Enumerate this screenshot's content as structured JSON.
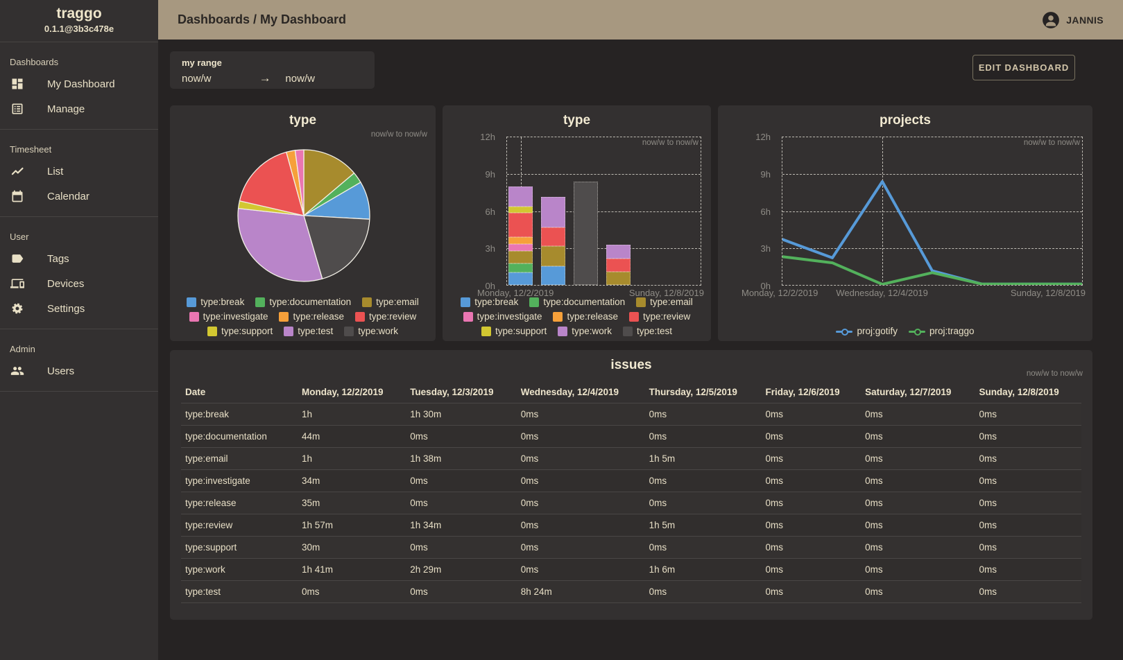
{
  "app": {
    "name": "traggo",
    "version": "0.1.1@3b3c478e"
  },
  "topbar": {
    "breadcrumb": "Dashboards / My Dashboard",
    "username": "JANNIS"
  },
  "sidebar": {
    "sections": [
      {
        "label": "Dashboards",
        "items": [
          {
            "icon": "dashboard-icon",
            "label": "My Dashboard"
          },
          {
            "icon": "manage-icon",
            "label": "Manage"
          }
        ]
      },
      {
        "label": "Timesheet",
        "items": [
          {
            "icon": "list-chart-icon",
            "label": "List"
          },
          {
            "icon": "calendar-icon",
            "label": "Calendar"
          }
        ]
      },
      {
        "label": "User",
        "items": [
          {
            "icon": "tag-icon",
            "label": "Tags"
          },
          {
            "icon": "devices-icon",
            "label": "Devices"
          },
          {
            "icon": "settings-icon",
            "label": "Settings"
          }
        ]
      },
      {
        "label": "Admin",
        "items": [
          {
            "icon": "users-icon",
            "label": "Users"
          }
        ]
      }
    ]
  },
  "toolbar": {
    "range_label": "my range",
    "range_from": "now/w",
    "range_to": "now/w",
    "edit_button": "EDIT DASHBOARD"
  },
  "colors": {
    "topbar": "#a79880",
    "card": "#333030",
    "background": "#262323",
    "text": "#e9e0c6"
  },
  "chart_data": [
    {
      "type": "pie",
      "title": "type",
      "subtitle": "now/w to now/w",
      "slices": [
        {
          "label": "type:email",
          "minutes": 223,
          "color": "#a78b2d"
        },
        {
          "label": "type:documentation",
          "minutes": 44,
          "color": "#53b15c"
        },
        {
          "label": "type:break",
          "minutes": 150,
          "color": "#579ad8"
        },
        {
          "label": "type:work",
          "minutes": 316,
          "color": "#4f4c4c"
        },
        {
          "label": "type:test",
          "minutes": 504,
          "color": "#b985c9"
        },
        {
          "label": "type:support",
          "minutes": 30,
          "color": "#d2c731"
        },
        {
          "label": "type:review",
          "minutes": 276,
          "color": "#eb5252"
        },
        {
          "label": "type:release",
          "minutes": 35,
          "color": "#f6a03a"
        },
        {
          "label": "type:investigate",
          "minutes": 34,
          "color": "#ea76b2"
        }
      ],
      "legend_rows": [
        [
          {
            "label": "type:break",
            "color": "#579ad8"
          },
          {
            "label": "type:documentation",
            "color": "#53b15c"
          },
          {
            "label": "type:email",
            "color": "#a78b2d"
          }
        ],
        [
          {
            "label": "type:investigate",
            "color": "#ea76b2"
          },
          {
            "label": "type:release",
            "color": "#f6a03a"
          },
          {
            "label": "type:review",
            "color": "#eb5252"
          }
        ],
        [
          {
            "label": "type:support",
            "color": "#d2c731"
          },
          {
            "label": "type:test",
            "color": "#b985c9"
          },
          {
            "label": "type:work",
            "color": "#4f4c4c"
          }
        ]
      ]
    },
    {
      "type": "bar",
      "title": "type",
      "subtitle": "now/w to now/w",
      "ylim": [
        0,
        12
      ],
      "yticks": [
        "12h",
        "9h",
        "6h",
        "3h",
        "0h"
      ],
      "x_labels": [
        {
          "label": "Monday, 12/2/2019",
          "align": "left"
        },
        {
          "label": "Sunday, 12/8/2019",
          "align": "right"
        }
      ],
      "stacks": [
        {
          "day": "Monday, 12/2/2019",
          "day_index": 0,
          "segments": [
            {
              "label": "type:break",
              "minutes": 60,
              "color": "#579ad8"
            },
            {
              "label": "type:documentation",
              "minutes": 44,
              "color": "#53b15c"
            },
            {
              "label": "type:email",
              "minutes": 60,
              "color": "#a78b2d"
            },
            {
              "label": "type:investigate",
              "minutes": 34,
              "color": "#ea76b2"
            },
            {
              "label": "type:release",
              "minutes": 35,
              "color": "#f6a03a"
            },
            {
              "label": "type:review",
              "minutes": 117,
              "color": "#eb5252"
            },
            {
              "label": "type:support",
              "minutes": 30,
              "color": "#d2c731"
            },
            {
              "label": "type:work",
              "minutes": 101,
              "color": "#b985c9"
            }
          ]
        },
        {
          "day": "Tuesday, 12/3/2019",
          "day_index": 1,
          "segments": [
            {
              "label": "type:break",
              "minutes": 90,
              "color": "#579ad8"
            },
            {
              "label": "type:email",
              "minutes": 98,
              "color": "#a78b2d"
            },
            {
              "label": "type:review",
              "minutes": 94,
              "color": "#eb5252"
            },
            {
              "label": "type:work",
              "minutes": 149,
              "color": "#b985c9"
            }
          ]
        },
        {
          "day": "Wednesday, 12/4/2019",
          "day_index": 2,
          "segments": [
            {
              "label": "type:test",
              "minutes": 504,
              "color": "#4f4c4c"
            }
          ]
        },
        {
          "day": "Thursday, 12/5/2019",
          "day_index": 3,
          "segments": [
            {
              "label": "type:email",
              "minutes": 65,
              "color": "#a78b2d"
            },
            {
              "label": "type:review",
              "minutes": 65,
              "color": "#eb5252"
            },
            {
              "label": "type:work",
              "minutes": 66,
              "color": "#b985c9"
            }
          ]
        }
      ],
      "legend_rows": [
        [
          {
            "label": "type:break",
            "color": "#579ad8"
          },
          {
            "label": "type:documentation",
            "color": "#53b15c"
          },
          {
            "label": "type:email",
            "color": "#a78b2d"
          }
        ],
        [
          {
            "label": "type:investigate",
            "color": "#ea76b2"
          },
          {
            "label": "type:release",
            "color": "#f6a03a"
          },
          {
            "label": "type:review",
            "color": "#eb5252"
          }
        ],
        [
          {
            "label": "type:support",
            "color": "#d2c731"
          },
          {
            "label": "type:work",
            "color": "#b985c9"
          },
          {
            "label": "type:test",
            "color": "#4f4c4c"
          }
        ]
      ]
    },
    {
      "type": "line",
      "title": "projects",
      "subtitle": "now/w to now/w",
      "ylim": [
        0,
        12
      ],
      "yticks": [
        "12h",
        "9h",
        "6h",
        "3h",
        "0h"
      ],
      "x_labels": [
        {
          "label": "Monday, 12/2/2019",
          "align": "left"
        },
        {
          "label": "Wednesday, 12/4/2019",
          "align": "center"
        },
        {
          "label": "Sunday, 12/8/2019",
          "align": "right"
        }
      ],
      "series": [
        {
          "name": "proj:gotify",
          "color": "#579ad8",
          "values": [
            3.7,
            2.2,
            8.4,
            1.15,
            0.07,
            0.07,
            0.07
          ]
        },
        {
          "name": "proj:traggo",
          "color": "#53b15c",
          "values": [
            2.3,
            1.8,
            0.05,
            1.0,
            0.07,
            0.07,
            0.07
          ]
        }
      ]
    },
    {
      "type": "table",
      "title": "issues",
      "subtitle": "now/w to now/w",
      "columns": [
        "Date",
        "Monday, 12/2/2019",
        "Tuesday, 12/3/2019",
        "Wednesday, 12/4/2019",
        "Thursday, 12/5/2019",
        "Friday, 12/6/2019",
        "Saturday, 12/7/2019",
        "Sunday, 12/8/2019"
      ],
      "rows": [
        [
          "type:break",
          "1h",
          "1h 30m",
          "0ms",
          "0ms",
          "0ms",
          "0ms",
          "0ms"
        ],
        [
          "type:documentation",
          "44m",
          "0ms",
          "0ms",
          "0ms",
          "0ms",
          "0ms",
          "0ms"
        ],
        [
          "type:email",
          "1h",
          "1h 38m",
          "0ms",
          "1h 5m",
          "0ms",
          "0ms",
          "0ms"
        ],
        [
          "type:investigate",
          "34m",
          "0ms",
          "0ms",
          "0ms",
          "0ms",
          "0ms",
          "0ms"
        ],
        [
          "type:release",
          "35m",
          "0ms",
          "0ms",
          "0ms",
          "0ms",
          "0ms",
          "0ms"
        ],
        [
          "type:review",
          "1h 57m",
          "1h 34m",
          "0ms",
          "1h 5m",
          "0ms",
          "0ms",
          "0ms"
        ],
        [
          "type:support",
          "30m",
          "0ms",
          "0ms",
          "0ms",
          "0ms",
          "0ms",
          "0ms"
        ],
        [
          "type:work",
          "1h 41m",
          "2h 29m",
          "0ms",
          "1h 6m",
          "0ms",
          "0ms",
          "0ms"
        ],
        [
          "type:test",
          "0ms",
          "0ms",
          "8h 24m",
          "0ms",
          "0ms",
          "0ms",
          "0ms"
        ]
      ]
    }
  ]
}
